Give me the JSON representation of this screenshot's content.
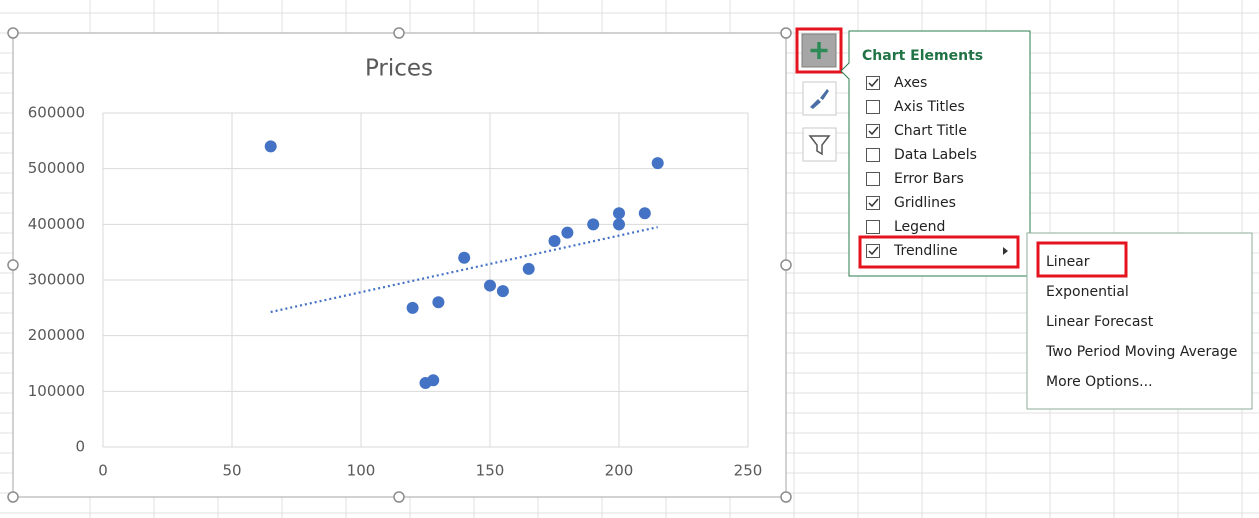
{
  "chart_data": {
    "type": "scatter",
    "title": "Prices",
    "series": [
      {
        "color": "#4472c4",
        "x": [
          65,
          120,
          130,
          125,
          128,
          140,
          150,
          155,
          165,
          175,
          180,
          190,
          200,
          200,
          210,
          215
        ],
        "values": [
          540000,
          250000,
          260000,
          115000,
          120000,
          340000,
          290000,
          280000,
          320000,
          370000,
          385000,
          400000,
          400000,
          420000,
          420000,
          510000
        ]
      }
    ],
    "trendline": {
      "x": [
        65,
        215
      ],
      "values": [
        242500,
        395000
      ],
      "color": "#4472c4"
    },
    "xlim": [
      0,
      250
    ],
    "xticks": [
      0,
      50,
      100,
      150,
      200,
      250
    ],
    "ylim": [
      0,
      600000
    ],
    "yticks": [
      0,
      100000,
      200000,
      300000,
      400000,
      500000,
      600000
    ],
    "grid": true
  },
  "chart_elements": {
    "title": "Chart Elements",
    "items": [
      {
        "label": "Axes",
        "checked": true
      },
      {
        "label": "Axis Titles",
        "checked": false
      },
      {
        "label": "Chart Title",
        "checked": true
      },
      {
        "label": "Data Labels",
        "checked": false
      },
      {
        "label": "Error Bars",
        "checked": false
      },
      {
        "label": "Gridlines",
        "checked": true
      },
      {
        "label": "Legend",
        "checked": false
      },
      {
        "label": "Trendline",
        "checked": true
      }
    ]
  },
  "trendline_menu": {
    "items": [
      "Linear",
      "Exponential",
      "Linear Forecast",
      "Two Period Moving Average",
      "More Options..."
    ]
  }
}
